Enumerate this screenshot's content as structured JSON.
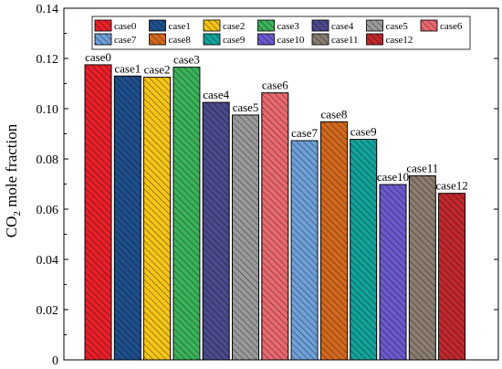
{
  "chart_data": {
    "type": "bar",
    "ylabel_main": "CO",
    "ylabel_sub": "2",
    "ylabel_rest": " mole fraction",
    "xlabel": "",
    "ylim": [
      0,
      0.14
    ],
    "yticks": [
      "0",
      "0.02",
      "0.04",
      "0.06",
      "0.08",
      "0.10",
      "0.12",
      "0.14"
    ],
    "categories": [
      "case0",
      "case1",
      "case2",
      "case3",
      "case4",
      "case5",
      "case6",
      "case7",
      "case8",
      "case9",
      "case10",
      "case11",
      "case12"
    ],
    "values": [
      0.1175,
      0.113,
      0.1125,
      0.1165,
      0.1025,
      0.0975,
      0.1063,
      0.0873,
      0.0948,
      0.0878,
      0.0698,
      0.0733,
      0.0663
    ],
    "colors": [
      "#E8202A",
      "#1F4E8C",
      "#F5C518",
      "#3CB35A",
      "#4A4A8C",
      "#9A9A9A",
      "#E8696E",
      "#6FA0D8",
      "#D2691E",
      "#13A39A",
      "#6A5ACD",
      "#8B7D70",
      "#C0282E"
    ],
    "hatch": "diagonal",
    "legend_position": "top",
    "legend_rows": [
      [
        "case0",
        "case1",
        "case2",
        "case3",
        "case4",
        "case5",
        "case6"
      ],
      [
        "case7",
        "case8",
        "case9",
        "case10",
        "case11",
        "case12"
      ]
    ],
    "grid": false
  }
}
